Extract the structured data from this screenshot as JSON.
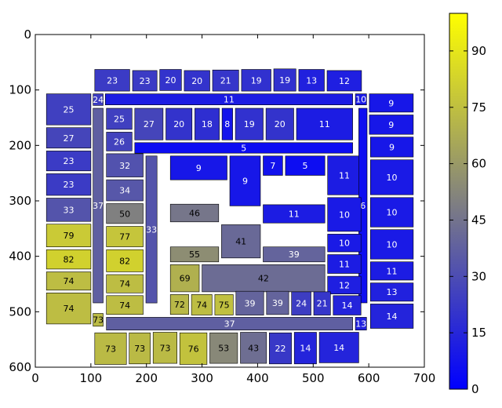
{
  "chart_data": {
    "type": "heatmap",
    "title": "",
    "xlabel": "",
    "ylabel": "",
    "xlim": [
      0,
      700
    ],
    "ylim": [
      600,
      0
    ],
    "x_ticks": [
      "0",
      "100",
      "200",
      "300",
      "400",
      "500",
      "600",
      "700"
    ],
    "y_ticks": [
      "0",
      "100",
      "200",
      "300",
      "400",
      "500",
      "600"
    ],
    "colorbar": {
      "min": 0,
      "max": 100,
      "ticks": [
        "0",
        "15",
        "30",
        "45",
        "60",
        "75",
        "90"
      ],
      "colors": [
        "#0000ff",
        "#808080",
        "#ffff00"
      ]
    },
    "grid": false,
    "cells": [
      {
        "x0": 107,
        "y0": 63,
        "x1": 170,
        "y1": 102,
        "value": 23
      },
      {
        "x0": 175,
        "y0": 65,
        "x1": 219,
        "y1": 102,
        "value": 23
      },
      {
        "x0": 224,
        "y0": 63,
        "x1": 263,
        "y1": 101,
        "value": 20
      },
      {
        "x0": 268,
        "y0": 65,
        "x1": 314,
        "y1": 102,
        "value": 20
      },
      {
        "x0": 319,
        "y0": 64,
        "x1": 366,
        "y1": 102,
        "value": 21
      },
      {
        "x0": 371,
        "y0": 63,
        "x1": 424,
        "y1": 102,
        "value": 19
      },
      {
        "x0": 429,
        "y0": 62,
        "x1": 469,
        "y1": 102,
        "value": 19
      },
      {
        "x0": 474,
        "y0": 63,
        "x1": 520,
        "y1": 102,
        "value": 13
      },
      {
        "x0": 525,
        "y0": 65,
        "x1": 587,
        "y1": 102,
        "value": 12
      },
      {
        "x0": 20,
        "y0": 107,
        "x1": 100,
        "y1": 163,
        "value": 25
      },
      {
        "x0": 104,
        "y0": 107,
        "x1": 122,
        "y1": 128,
        "value": 24
      },
      {
        "x0": 126,
        "y0": 107,
        "x1": 571,
        "y1": 127,
        "value": 11
      },
      {
        "x0": 576,
        "y0": 107,
        "x1": 596,
        "y1": 127,
        "value": 10
      },
      {
        "x0": 601,
        "y0": 107,
        "x1": 680,
        "y1": 140,
        "value": 9
      },
      {
        "x0": 128,
        "y0": 133,
        "x1": 174,
        "y1": 171,
        "value": 25
      },
      {
        "x0": 179,
        "y0": 133,
        "x1": 230,
        "y1": 190,
        "value": 27
      },
      {
        "x0": 235,
        "y0": 133,
        "x1": 282,
        "y1": 190,
        "value": 20
      },
      {
        "x0": 287,
        "y0": 133,
        "x1": 331,
        "y1": 190,
        "value": 18
      },
      {
        "x0": 336,
        "y0": 133,
        "x1": 355,
        "y1": 190,
        "value": 8
      },
      {
        "x0": 360,
        "y0": 133,
        "x1": 410,
        "y1": 190,
        "value": 19
      },
      {
        "x0": 415,
        "y0": 133,
        "x1": 465,
        "y1": 190,
        "value": 20
      },
      {
        "x0": 470,
        "y0": 133,
        "x1": 571,
        "y1": 190,
        "value": 11
      },
      {
        "x0": 601,
        "y0": 145,
        "x1": 680,
        "y1": 180,
        "value": 9
      },
      {
        "x0": 20,
        "y0": 168,
        "x1": 100,
        "y1": 205,
        "value": 27
      },
      {
        "x0": 128,
        "y0": 176,
        "x1": 174,
        "y1": 210,
        "value": 26
      },
      {
        "x0": 603,
        "y0": 185,
        "x1": 680,
        "y1": 221,
        "value": 9
      },
      {
        "x0": 179,
        "y0": 195,
        "x1": 571,
        "y1": 214,
        "value": 5
      },
      {
        "x0": 20,
        "y0": 210,
        "x1": 100,
        "y1": 246,
        "value": 23
      },
      {
        "x0": 128,
        "y0": 215,
        "x1": 194,
        "y1": 257,
        "value": 32
      },
      {
        "x0": 243,
        "y0": 219,
        "x1": 345,
        "y1": 262,
        "value": 9
      },
      {
        "x0": 350,
        "y0": 219,
        "x1": 405,
        "y1": 309,
        "value": 9
      },
      {
        "x0": 410,
        "y0": 219,
        "x1": 445,
        "y1": 254,
        "value": 7
      },
      {
        "x0": 450,
        "y0": 219,
        "x1": 521,
        "y1": 254,
        "value": 5
      },
      {
        "x0": 526,
        "y0": 219,
        "x1": 586,
        "y1": 289,
        "value": 11
      },
      {
        "x0": 603,
        "y0": 226,
        "x1": 680,
        "y1": 289,
        "value": 10
      },
      {
        "x0": 20,
        "y0": 251,
        "x1": 100,
        "y1": 290,
        "value": 23
      },
      {
        "x0": 128,
        "y0": 262,
        "x1": 194,
        "y1": 300,
        "value": 34
      },
      {
        "x0": 104,
        "y0": 133,
        "x1": 122,
        "y1": 484,
        "value": 37
      },
      {
        "x0": 199,
        "y0": 219,
        "x1": 219,
        "y1": 484,
        "value": 33
      },
      {
        "x0": 582,
        "y0": 133,
        "x1": 597,
        "y1": 484,
        "value": 6
      },
      {
        "x0": 20,
        "y0": 295,
        "x1": 100,
        "y1": 337,
        "value": 33
      },
      {
        "x0": 128,
        "y0": 305,
        "x1": 194,
        "y1": 341,
        "value": 50
      },
      {
        "x0": 243,
        "y0": 306,
        "x1": 330,
        "y1": 338,
        "value": 46
      },
      {
        "x0": 410,
        "y0": 307,
        "x1": 521,
        "y1": 340,
        "value": 11
      },
      {
        "x0": 526,
        "y0": 294,
        "x1": 586,
        "y1": 355,
        "value": 10
      },
      {
        "x0": 603,
        "y0": 294,
        "x1": 680,
        "y1": 347,
        "value": 10
      },
      {
        "x0": 20,
        "y0": 342,
        "x1": 100,
        "y1": 383,
        "value": 79
      },
      {
        "x0": 128,
        "y0": 346,
        "x1": 194,
        "y1": 383,
        "value": 77
      },
      {
        "x0": 335,
        "y0": 343,
        "x1": 405,
        "y1": 403,
        "value": 41
      },
      {
        "x0": 526,
        "y0": 360,
        "x1": 586,
        "y1": 392,
        "value": 10
      },
      {
        "x0": 603,
        "y0": 352,
        "x1": 680,
        "y1": 405,
        "value": 10
      },
      {
        "x0": 243,
        "y0": 383,
        "x1": 330,
        "y1": 410,
        "value": 55
      },
      {
        "x0": 410,
        "y0": 383,
        "x1": 521,
        "y1": 410,
        "value": 39
      },
      {
        "x0": 20,
        "y0": 388,
        "x1": 100,
        "y1": 423,
        "value": 82
      },
      {
        "x0": 128,
        "y0": 388,
        "x1": 194,
        "y1": 428,
        "value": 82
      },
      {
        "x0": 243,
        "y0": 415,
        "x1": 295,
        "y1": 464,
        "value": 69
      },
      {
        "x0": 300,
        "y0": 415,
        "x1": 521,
        "y1": 464,
        "value": 42
      },
      {
        "x0": 526,
        "y0": 397,
        "x1": 586,
        "y1": 431,
        "value": 11
      },
      {
        "x0": 603,
        "y0": 410,
        "x1": 680,
        "y1": 443,
        "value": 11
      },
      {
        "x0": 20,
        "y0": 428,
        "x1": 100,
        "y1": 461,
        "value": 74
      },
      {
        "x0": 128,
        "y0": 433,
        "x1": 194,
        "y1": 466,
        "value": 74
      },
      {
        "x0": 526,
        "y0": 436,
        "x1": 586,
        "y1": 468,
        "value": 12
      },
      {
        "x0": 603,
        "y0": 448,
        "x1": 680,
        "y1": 481,
        "value": 13
      },
      {
        "x0": 20,
        "y0": 466,
        "x1": 100,
        "y1": 522,
        "value": 74
      },
      {
        "x0": 128,
        "y0": 471,
        "x1": 194,
        "y1": 505,
        "value": 74
      },
      {
        "x0": 243,
        "y0": 469,
        "x1": 276,
        "y1": 505,
        "value": 72
      },
      {
        "x0": 281,
        "y0": 469,
        "x1": 318,
        "y1": 506,
        "value": 74
      },
      {
        "x0": 323,
        "y0": 469,
        "x1": 356,
        "y1": 506,
        "value": 75
      },
      {
        "x0": 361,
        "y0": 463,
        "x1": 411,
        "y1": 506,
        "value": 39
      },
      {
        "x0": 416,
        "y0": 463,
        "x1": 456,
        "y1": 505,
        "value": 39
      },
      {
        "x0": 461,
        "y0": 464,
        "x1": 496,
        "y1": 506,
        "value": 24
      },
      {
        "x0": 501,
        "y0": 464,
        "x1": 531,
        "y1": 506,
        "value": 21
      },
      {
        "x0": 536,
        "y0": 471,
        "x1": 586,
        "y1": 506,
        "value": 14
      },
      {
        "x0": 603,
        "y0": 486,
        "x1": 680,
        "y1": 530,
        "value": 14
      },
      {
        "x0": 104,
        "y0": 503,
        "x1": 122,
        "y1": 526,
        "value": 73
      },
      {
        "x0": 128,
        "y0": 510,
        "x1": 571,
        "y1": 533,
        "value": 37
      },
      {
        "x0": 576,
        "y0": 510,
        "x1": 596,
        "y1": 533,
        "value": 13
      },
      {
        "x0": 107,
        "y0": 538,
        "x1": 164,
        "y1": 595,
        "value": 73
      },
      {
        "x0": 169,
        "y0": 538,
        "x1": 207,
        "y1": 594,
        "value": 73
      },
      {
        "x0": 212,
        "y0": 537,
        "x1": 255,
        "y1": 593,
        "value": 73
      },
      {
        "x0": 260,
        "y0": 538,
        "x1": 309,
        "y1": 595,
        "value": 76
      },
      {
        "x0": 314,
        "y0": 538,
        "x1": 364,
        "y1": 593,
        "value": 53
      },
      {
        "x0": 369,
        "y0": 537,
        "x1": 416,
        "y1": 593,
        "value": 43
      },
      {
        "x0": 421,
        "y0": 538,
        "x1": 461,
        "y1": 594,
        "value": 22
      },
      {
        "x0": 466,
        "y0": 537,
        "x1": 506,
        "y1": 594,
        "value": 14
      },
      {
        "x0": 511,
        "y0": 537,
        "x1": 582,
        "y1": 592,
        "value": 14
      }
    ]
  }
}
